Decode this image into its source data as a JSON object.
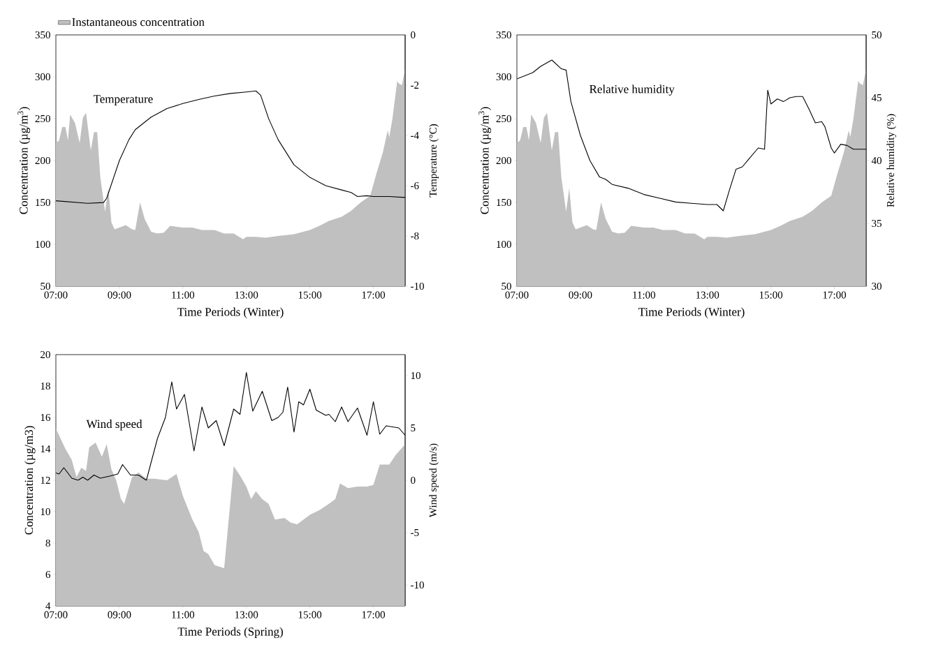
{
  "chart_data": [
    {
      "type": "area",
      "xlabel": "Time Periods (Winter)",
      "ylabel": "Concentration (µg/m$^{3}$)",
      "y2label": "Temperature (°C)",
      "legend": "top left",
      "xlim": [
        7,
        18
      ],
      "xticks": [
        {
          "value": 7,
          "label": "07:00"
        },
        {
          "value": 9,
          "label": "09:00"
        },
        {
          "value": 11,
          "label": "11:00"
        },
        {
          "value": 13,
          "label": "13:00"
        },
        {
          "value": 15,
          "label": "15:00"
        },
        {
          "value": 17,
          "label": "17:00"
        }
      ],
      "ylim": [
        50,
        350
      ],
      "yticks": [
        50,
        100,
        150,
        200,
        250,
        300,
        350
      ],
      "y2lim": [
        -10,
        0
      ],
      "y2ticks": [
        -10,
        -8,
        -6,
        -4,
        -2,
        0
      ],
      "series": [
        {
          "name": "Instantaneous concentration",
          "color": "#c0c0c0",
          "x": [
            7.0,
            7.1,
            7.2,
            7.3,
            7.38,
            7.45,
            7.6,
            7.75,
            7.85,
            7.95,
            8.1,
            8.2,
            8.3,
            8.4,
            8.55,
            8.65,
            8.75,
            8.85,
            9.0,
            9.2,
            9.4,
            9.5,
            9.65,
            9.8,
            10.0,
            10.2,
            10.4,
            10.6,
            11.0,
            11.3,
            11.6,
            12.0,
            12.3,
            12.6,
            12.9,
            13.0,
            13.3,
            13.6,
            14.0,
            14.5,
            15.0,
            15.3,
            15.6,
            16.0,
            16.3,
            16.6,
            16.9,
            17.1,
            17.3,
            17.45,
            17.5,
            17.6,
            17.75,
            17.8,
            17.9,
            18.0
          ],
          "values": [
            221,
            224,
            240,
            240,
            224,
            255,
            245,
            221,
            251,
            257,
            212,
            234,
            234,
            180,
            139,
            167,
            126,
            118,
            120,
            123,
            118,
            117,
            150,
            130,
            115,
            113,
            114,
            122,
            120,
            120,
            117,
            117,
            113,
            113,
            106,
            109,
            109,
            108,
            110,
            112,
            117,
            122,
            128,
            133,
            140,
            150,
            158,
            185,
            210,
            236,
            228,
            250,
            295,
            292,
            290,
            310
          ]
        },
        {
          "name": "Temperature",
          "type": "line",
          "axis": "y2",
          "color": "#000000",
          "x": [
            7.0,
            8.0,
            8.5,
            8.6,
            9.0,
            9.3,
            9.5,
            10.0,
            10.5,
            11.0,
            11.5,
            12.0,
            12.5,
            13.0,
            13.3,
            13.45,
            13.7,
            14.0,
            14.5,
            15.0,
            15.5,
            16.0,
            16.3,
            16.5,
            16.8,
            17.0,
            17.5,
            18.0
          ],
          "values": [
            -6.6,
            -6.7,
            -6.67,
            -6.5,
            -5.0,
            -4.17,
            -3.77,
            -3.27,
            -2.93,
            -2.73,
            -2.57,
            -2.43,
            -2.33,
            -2.27,
            -2.23,
            -2.4,
            -3.33,
            -4.17,
            -5.17,
            -5.67,
            -6.0,
            -6.17,
            -6.27,
            -6.43,
            -6.4,
            -6.43,
            -6.43,
            -6.47
          ]
        }
      ]
    },
    {
      "type": "area",
      "xlabel": "Time Periods (Winter)",
      "ylabel": "Concentration (µg/m$^{3}$)",
      "y2label": "Relative humidity (%)",
      "xlim": [
        7,
        18
      ],
      "xticks": [
        {
          "value": 7,
          "label": "07:00"
        },
        {
          "value": 9,
          "label": "09:00"
        },
        {
          "value": 11,
          "label": "11:00"
        },
        {
          "value": 13,
          "label": "13:00"
        },
        {
          "value": 15,
          "label": "15:00"
        },
        {
          "value": 17,
          "label": "17:00"
        }
      ],
      "ylim": [
        50,
        350
      ],
      "yticks": [
        50,
        100,
        150,
        200,
        250,
        300,
        350
      ],
      "y2lim": [
        30,
        50
      ],
      "y2ticks": [
        30,
        35,
        40,
        45,
        50
      ],
      "series": [
        {
          "color": "#c0c0c0",
          "x": [
            7.0,
            7.1,
            7.2,
            7.3,
            7.38,
            7.45,
            7.6,
            7.75,
            7.85,
            7.95,
            8.1,
            8.2,
            8.3,
            8.4,
            8.55,
            8.65,
            8.75,
            8.85,
            9.0,
            9.2,
            9.4,
            9.5,
            9.65,
            9.8,
            10.0,
            10.2,
            10.4,
            10.6,
            11.0,
            11.3,
            11.6,
            12.0,
            12.3,
            12.6,
            12.9,
            13.0,
            13.3,
            13.6,
            14.0,
            14.5,
            15.0,
            15.3,
            15.6,
            16.0,
            16.3,
            16.6,
            16.9,
            17.1,
            17.3,
            17.45,
            17.5,
            17.6,
            17.75,
            17.8,
            17.9,
            18.0
          ],
          "values": [
            221,
            224,
            240,
            240,
            224,
            255,
            245,
            221,
            251,
            257,
            212,
            234,
            234,
            180,
            139,
            167,
            126,
            118,
            120,
            123,
            118,
            117,
            150,
            130,
            115,
            113,
            114,
            122,
            120,
            120,
            117,
            117,
            113,
            113,
            106,
            109,
            109,
            108,
            110,
            112,
            117,
            122,
            128,
            133,
            140,
            150,
            158,
            185,
            210,
            236,
            228,
            250,
            295,
            292,
            290,
            310
          ]
        },
        {
          "name": "Relative humidity",
          "type": "line",
          "axis": "y2",
          "color": "#000000",
          "x": [
            7.0,
            7.5,
            7.75,
            8.1,
            8.4,
            8.55,
            8.7,
            9.0,
            9.3,
            9.6,
            9.8,
            10.0,
            10.5,
            11.0,
            11.5,
            12.0,
            12.5,
            13.0,
            13.3,
            13.5,
            13.7,
            13.9,
            14.1,
            14.3,
            14.6,
            14.8,
            14.9,
            15.0,
            15.2,
            15.4,
            15.6,
            15.8,
            16.0,
            16.2,
            16.4,
            16.6,
            16.7,
            16.9,
            17.0,
            17.2,
            17.4,
            17.6,
            18.0
          ],
          "values": [
            46.5,
            47.0,
            47.5,
            48.0,
            47.3,
            47.2,
            44.7,
            42.0,
            40.0,
            38.7,
            38.5,
            38.1,
            37.8,
            37.3,
            37.0,
            36.7,
            36.6,
            36.5,
            36.5,
            36.0,
            37.7,
            39.3,
            39.5,
            40.1,
            41.0,
            40.9,
            45.6,
            44.5,
            44.9,
            44.7,
            45.0,
            45.1,
            45.1,
            44.1,
            43.0,
            43.1,
            42.7,
            41.0,
            40.6,
            41.3,
            41.2,
            40.9,
            40.9
          ]
        }
      ]
    },
    {
      "type": "area",
      "xlabel": "Time Periods (Spring)",
      "ylabel": "Concentration (µg/m3)",
      "y2label": "Wind speed (m/s)",
      "xlim": [
        7,
        18
      ],
      "xticks": [
        {
          "value": 7,
          "label": "07:00"
        },
        {
          "value": 9,
          "label": "09:00"
        },
        {
          "value": 11,
          "label": "11:00"
        },
        {
          "value": 13,
          "label": "13:00"
        },
        {
          "value": 15,
          "label": "15:00"
        },
        {
          "value": 17,
          "label": "17:00"
        }
      ],
      "ylim": [
        4,
        20
      ],
      "yticks": [
        4,
        6,
        8,
        10,
        12,
        14,
        16,
        18,
        20
      ],
      "y2lim": [
        -12,
        12
      ],
      "y2ticks": [
        -10,
        -5,
        0,
        5,
        10
      ],
      "series": [
        {
          "color": "#c0c0c0",
          "x": [
            7.0,
            7.3,
            7.5,
            7.65,
            7.8,
            7.95,
            8.05,
            8.25,
            8.45,
            8.6,
            8.75,
            8.9,
            9.05,
            9.15,
            9.4,
            9.6,
            9.85,
            10.1,
            10.5,
            10.8,
            11.0,
            11.3,
            11.5,
            11.65,
            11.8,
            12.0,
            12.3,
            12.6,
            12.8,
            13.0,
            13.15,
            13.3,
            13.5,
            13.7,
            13.9,
            14.2,
            14.4,
            14.6,
            15.0,
            15.3,
            15.6,
            15.8,
            15.95,
            16.2,
            16.5,
            16.8,
            17.0,
            17.2,
            17.5,
            17.7,
            18.0
          ],
          "values": [
            15.3,
            14.0,
            13.3,
            12.2,
            12.8,
            12.6,
            14.1,
            14.4,
            13.5,
            14.3,
            12.7,
            12.0,
            10.8,
            10.5,
            12.2,
            12.5,
            12.1,
            12.1,
            12.0,
            12.4,
            11.0,
            9.5,
            8.7,
            7.5,
            7.3,
            6.6,
            6.4,
            12.9,
            12.3,
            11.6,
            10.8,
            11.3,
            10.8,
            10.5,
            9.5,
            9.6,
            9.3,
            9.2,
            9.8,
            10.1,
            10.5,
            10.8,
            11.8,
            11.5,
            11.6,
            11.6,
            11.7,
            13.0,
            13.0,
            13.6,
            14.3
          ]
        },
        {
          "name": "Wind speed",
          "type": "line",
          "axis": "y2",
          "color": "#000000",
          "x": [
            7.0,
            7.1,
            7.25,
            7.5,
            7.7,
            7.85,
            8.0,
            8.2,
            8.4,
            8.7,
            8.95,
            9.1,
            9.35,
            9.6,
            9.85,
            10.2,
            10.45,
            10.65,
            10.8,
            11.05,
            11.35,
            11.6,
            11.8,
            12.05,
            12.3,
            12.6,
            12.8,
            13.0,
            13.2,
            13.5,
            13.8,
            14.0,
            14.15,
            14.3,
            14.5,
            14.65,
            14.8,
            15.0,
            15.2,
            15.5,
            15.6,
            15.8,
            16.0,
            16.2,
            16.5,
            16.8,
            17.0,
            17.2,
            17.4,
            17.6,
            17.8,
            18.0
          ],
          "values": [
            0.7,
            0.6,
            1.2,
            0.2,
            0.0,
            0.3,
            0.0,
            0.5,
            0.2,
            0.4,
            0.6,
            1.5,
            0.5,
            0.5,
            0.0,
            4.0,
            6.0,
            9.4,
            6.8,
            8.2,
            2.8,
            7.0,
            5.0,
            5.7,
            3.3,
            6.8,
            6.3,
            10.3,
            6.6,
            8.5,
            5.7,
            6.0,
            6.5,
            8.9,
            4.6,
            7.5,
            7.2,
            8.7,
            6.7,
            6.2,
            6.3,
            5.6,
            7.0,
            5.6,
            6.9,
            4.3,
            7.5,
            4.4,
            5.2,
            5.1,
            5.0,
            4.3
          ]
        }
      ]
    }
  ]
}
